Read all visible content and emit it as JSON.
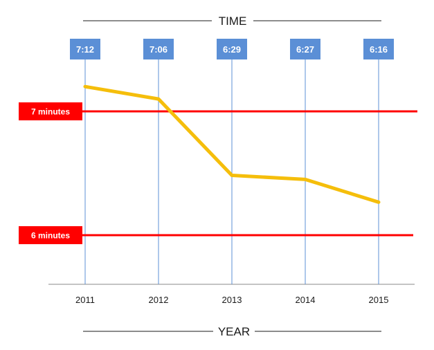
{
  "chart_data": {
    "type": "line",
    "title": "TIME",
    "xlabel": "YEAR",
    "categories": [
      "2011",
      "2012",
      "2013",
      "2014",
      "2015"
    ],
    "series": [
      {
        "values": [
          432,
          426,
          389,
          387,
          376
        ],
        "labels": [
          "7:12",
          "7:06",
          "6:29",
          "6:27",
          "6:16"
        ],
        "color": "#F5BE0B"
      }
    ],
    "reference_lines": [
      {
        "label": "7 minutes",
        "value": 420,
        "color": "#FF0000"
      },
      {
        "label": "6 minutes",
        "value": 360,
        "color": "#FF0000"
      }
    ],
    "label_box_color": "#5B8FD6",
    "grid": false,
    "legend": "none"
  }
}
